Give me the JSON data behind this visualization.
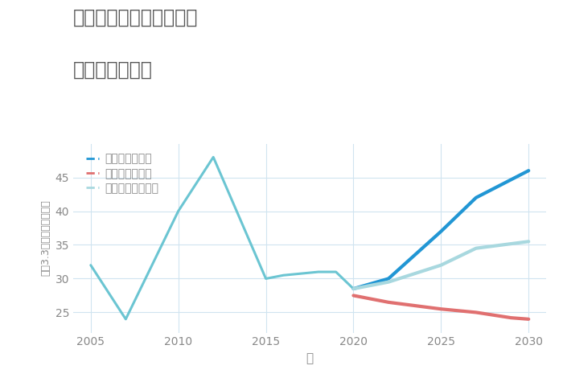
{
  "title_line1": "愛知県西尾市東幡豆町の",
  "title_line2": "土地の価格推移",
  "xlabel": "年",
  "ylabel": "坪（3.3㎡）単価（万円）",
  "legend_good": "グッドシナリオ",
  "legend_bad": "バッドシナリオ",
  "legend_normal": "ノーマルシナリオ",
  "historical_years": [
    2005,
    2007,
    2010,
    2012,
    2015,
    2016,
    2018,
    2019,
    2020
  ],
  "historical_values": [
    32,
    24,
    40,
    48,
    30,
    30.5,
    31,
    31,
    28.5
  ],
  "good_years": [
    2020,
    2022,
    2025,
    2027,
    2030
  ],
  "good_values": [
    28.5,
    30,
    37,
    42,
    46
  ],
  "bad_years": [
    2020,
    2022,
    2025,
    2027,
    2029,
    2030
  ],
  "bad_values": [
    27.5,
    26.5,
    25.5,
    25,
    24.2,
    24
  ],
  "normal_years": [
    2020,
    2022,
    2025,
    2027,
    2030
  ],
  "normal_values": [
    28.5,
    29.5,
    32,
    34.5,
    35.5
  ],
  "color_historical": "#6bc5d2",
  "color_good": "#2196d4",
  "color_bad": "#e07070",
  "color_normal": "#a8d8df",
  "ylim_min": 22,
  "ylim_max": 50,
  "yticks": [
    25,
    30,
    35,
    40,
    45
  ],
  "xlim_min": 2004,
  "xlim_max": 2031,
  "xticks": [
    2005,
    2010,
    2015,
    2020,
    2025,
    2030
  ],
  "background_color": "#ffffff",
  "grid_color": "#d0e4f0",
  "title_color": "#555555",
  "tick_color": "#888888",
  "linewidth_historical": 2.2,
  "linewidth_scenario": 3.0,
  "title_fontsize": 17,
  "label_fontsize": 10,
  "legend_fontsize": 10
}
